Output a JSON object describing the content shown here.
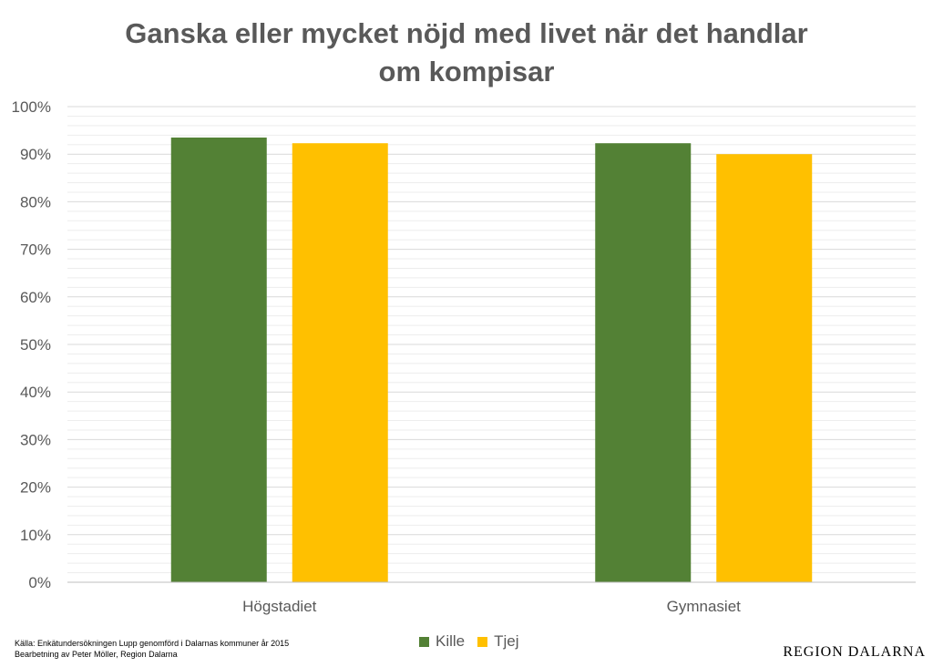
{
  "chart_data": {
    "type": "bar",
    "title": "Ganska eller mycket nöjd med livet när det handlar om kompisar",
    "categories": [
      "Högstadiet",
      "Gymnasiet"
    ],
    "series": [
      {
        "name": "Kille",
        "values": [
          93.5,
          92.3
        ],
        "color": "#538135"
      },
      {
        "name": "Tjej",
        "values": [
          92.3,
          90.0
        ],
        "color": "#FFC000"
      }
    ],
    "ylim": [
      0,
      100
    ],
    "y_ticks": [
      "0%",
      "10%",
      "20%",
      "30%",
      "40%",
      "50%",
      "60%",
      "70%",
      "80%",
      "90%",
      "100%"
    ],
    "grid": true,
    "minor_grid": true,
    "legend_position": "bottom",
    "xlabel": "",
    "ylabel": ""
  },
  "source": {
    "line1": "Källa: Enkätundersökningen Lupp genomförd i Dalarnas kommuner år 2015",
    "line2": "Bearbetning av Peter Möller, Region Dalarna"
  },
  "logo_text": "REGION DALARNA",
  "colors": {
    "text": "#595959",
    "grid_major": "#D9D9D9",
    "grid_minor": "#EDEDED",
    "axis": "#BFBFBF"
  }
}
